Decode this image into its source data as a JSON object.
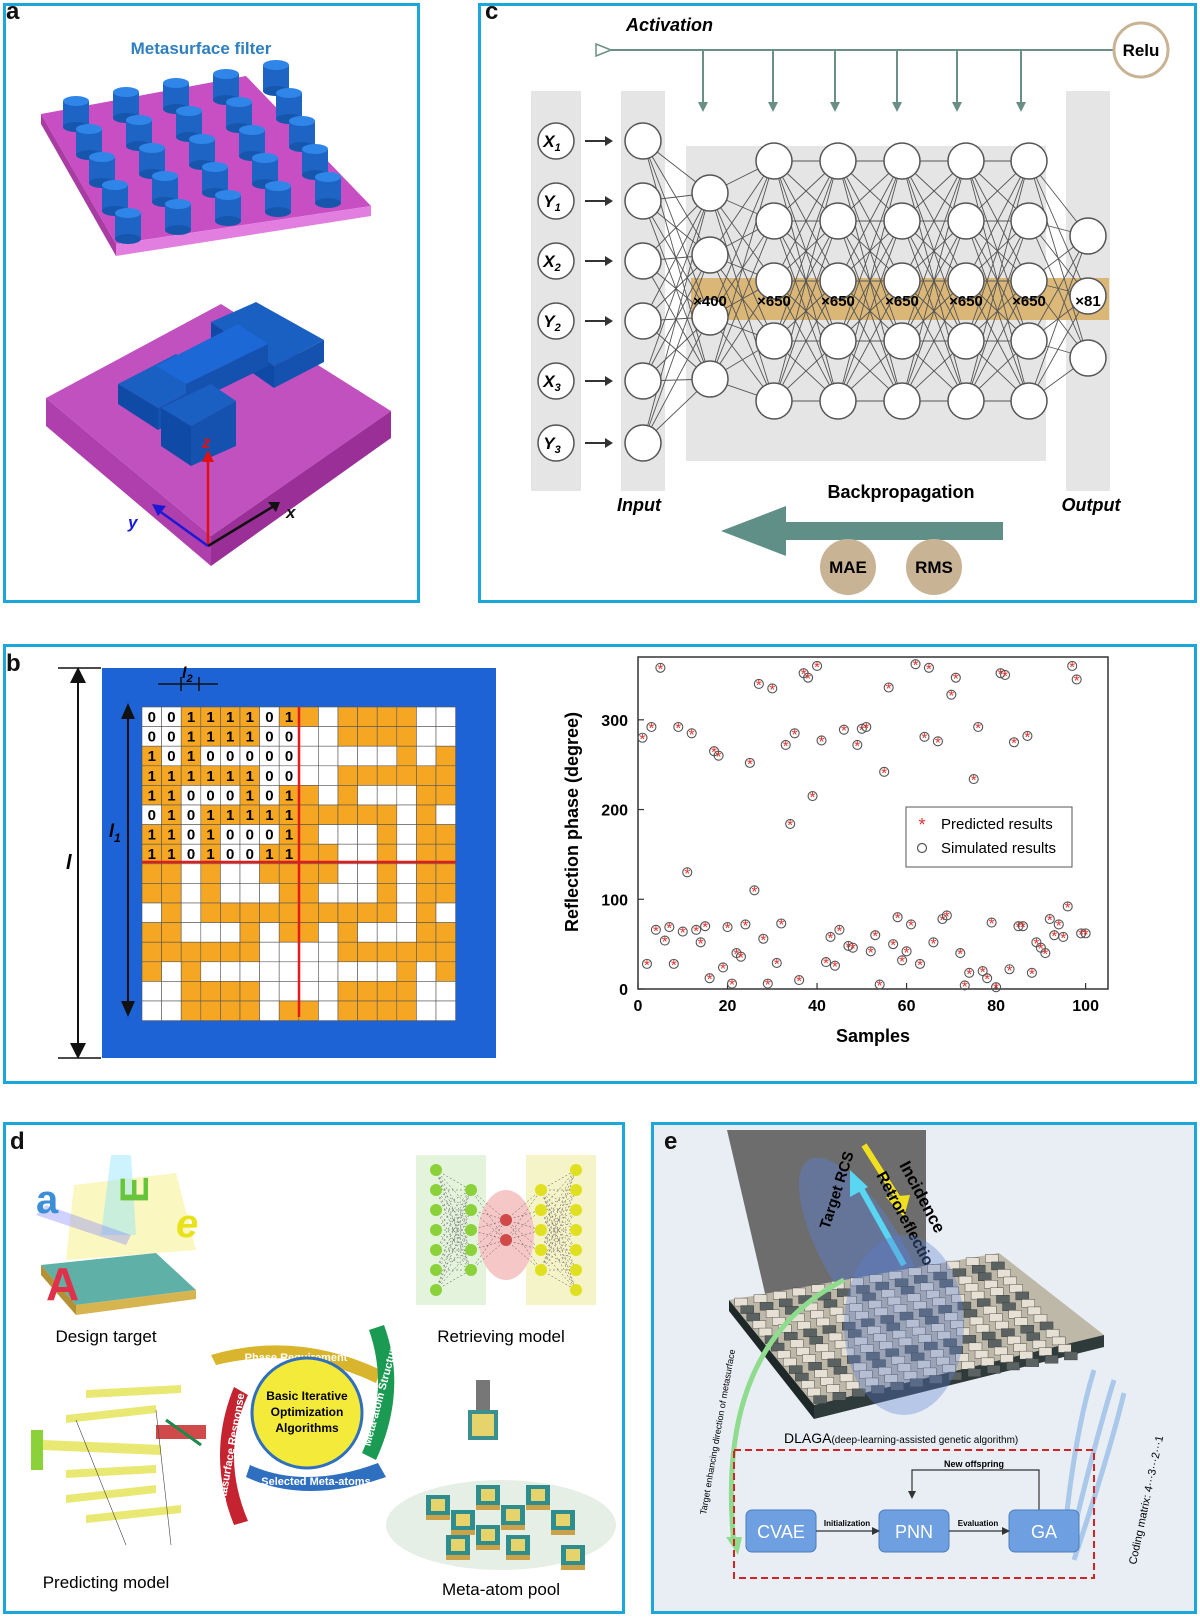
{
  "panel_labels": {
    "a": "a",
    "b": "b",
    "c": "c",
    "d": "d",
    "e": "e"
  },
  "panel_a": {
    "title": "Metasurface filter",
    "axis_x": "x",
    "axis_y": "y",
    "axis_z": "z",
    "colors": {
      "substrate": "#c84fc3",
      "pillar": "#1f6fd1",
      "title": "#2f7fc0"
    }
  },
  "panel_c": {
    "activation": "Activation",
    "relu": "Relu",
    "inputs": [
      {
        "var": "X",
        "sub": "1"
      },
      {
        "var": "Y",
        "sub": "1"
      },
      {
        "var": "X",
        "sub": "2"
      },
      {
        "var": "Y",
        "sub": "2"
      },
      {
        "var": "X",
        "sub": "3"
      },
      {
        "var": "Y",
        "sub": "3"
      }
    ],
    "layer_sizes": [
      "×400",
      "×650",
      "×650",
      "×650",
      "×650",
      "×650",
      "×81"
    ],
    "input_label": "Input",
    "output_label": "Output",
    "backprop": "Backpropagation",
    "mae": "MAE",
    "rms": "RMS",
    "colors": {
      "band": "#d9b16a",
      "arrow": "#5f8f87",
      "badge": "#c9b395"
    }
  },
  "panel_b": {
    "dim_l": "l",
    "dim_l1": "l",
    "dim_l1_sub": "1",
    "dim_l2": "l",
    "dim_l2_sub": "2",
    "grid_bits": [
      [
        "0",
        "0",
        "1",
        "1",
        "1",
        "1",
        "0",
        "1"
      ],
      [
        "0",
        "0",
        "1",
        "1",
        "1",
        "1",
        "0",
        "0"
      ],
      [
        "1",
        "0",
        "1",
        "0",
        "0",
        "0",
        "0",
        "0"
      ],
      [
        "1",
        "1",
        "1",
        "1",
        "1",
        "1",
        "0",
        "0"
      ],
      [
        "1",
        "1",
        "0",
        "0",
        "0",
        "1",
        "0",
        "1"
      ],
      [
        "0",
        "1",
        "0",
        "1",
        "1",
        "1",
        "1",
        "1"
      ],
      [
        "1",
        "1",
        "0",
        "1",
        "0",
        "0",
        "0",
        "1"
      ],
      [
        "1",
        "1",
        "0",
        "1",
        "0",
        "0",
        "1",
        "1"
      ]
    ],
    "colors": {
      "bg": "#1e63d6",
      "on": "#f5a623",
      "off": "#ffffff",
      "cut": "#e31b1b"
    }
  },
  "chart_data": {
    "type": "scatter",
    "xlabel": "Samples",
    "ylabel": "Reflection phase (degree)",
    "xlim": [
      0,
      105
    ],
    "ylim": [
      0,
      370
    ],
    "xticks": [
      "0",
      "20",
      "40",
      "60",
      "80",
      "100"
    ],
    "yticks": [
      "0",
      "100",
      "200",
      "300"
    ],
    "legend_position": "right",
    "series": [
      {
        "name": "Predicted results",
        "marker": "asterisk",
        "color": "#e8322d"
      },
      {
        "name": "Simulated results",
        "marker": "circle",
        "color": "#555555"
      }
    ],
    "x": [
      1,
      2,
      3,
      4,
      5,
      6,
      7,
      8,
      9,
      10,
      11,
      12,
      13,
      14,
      15,
      16,
      17,
      18,
      19,
      20,
      21,
      22,
      23,
      24,
      25,
      26,
      27,
      28,
      29,
      30,
      31,
      32,
      33,
      34,
      35,
      36,
      37,
      38,
      39,
      40,
      41,
      42,
      43,
      44,
      45,
      46,
      47,
      48,
      49,
      50,
      51,
      52,
      53,
      54,
      55,
      56,
      57,
      58,
      59,
      60,
      61,
      62,
      63,
      64,
      65,
      66,
      67,
      68,
      69,
      70,
      71,
      72,
      73,
      74,
      75,
      76,
      77,
      78,
      79,
      80,
      81,
      82,
      83,
      84,
      85,
      86,
      87,
      88,
      89,
      90,
      91,
      92,
      93,
      94,
      95,
      96,
      97,
      98,
      99,
      100
    ],
    "y": [
      280,
      28,
      292,
      66,
      358,
      54,
      69,
      28,
      292,
      64,
      130,
      285,
      66,
      52,
      70,
      12,
      265,
      260,
      24,
      69,
      6,
      40,
      36,
      72,
      252,
      110,
      340,
      56,
      6,
      335,
      29,
      73,
      272,
      184,
      285,
      10,
      352,
      347,
      215,
      360,
      277,
      30,
      58,
      26,
      66,
      289,
      48,
      46,
      272,
      290,
      292,
      42,
      60,
      5,
      242,
      336,
      50,
      80,
      32,
      42,
      72,
      362,
      28,
      281,
      358,
      52,
      276,
      78,
      82,
      328,
      347,
      40,
      4,
      18,
      234,
      292,
      20,
      12,
      74,
      2,
      352,
      350,
      22,
      275,
      70,
      70,
      282,
      18,
      52,
      46,
      40,
      78,
      60,
      72,
      58,
      92,
      360,
      345,
      62,
      62
    ]
  },
  "panel_d": {
    "design_target": "Design target",
    "retrieving_model": "Retrieving model",
    "predicting_model": "Predicting model",
    "meta_atom_pool": "Meta-atom pool",
    "center_text": [
      "Basic Iterative",
      "Optimization",
      "Algorithms"
    ],
    "arc_phase": "Phase Requirement",
    "arc_structure": "Meta-atom Structure",
    "arc_selected": "Selected Meta-atoms",
    "arc_response": "Metasurface Response",
    "glyph_a": "a",
    "glyph_A": "A",
    "glyph_e": "e",
    "glyph_E": "E"
  },
  "panel_e": {
    "incidence": "Incidence",
    "target_rcs": "Target RCS",
    "retroreflection": "Retroreflection",
    "target_dir": "Target enhancing direction of metasurface",
    "coding_matrix": "Coding matrix: 4···3···2···1",
    "dlaga": "DLAGA",
    "dlaga_full": "(deep-learning-assisted genetic algorithm)",
    "new_offspring": "New offspring",
    "cvae": "CVAE",
    "pnn": "PNN",
    "ga": "GA",
    "initialization": "Initialization",
    "evaluation": "Evaluation"
  }
}
